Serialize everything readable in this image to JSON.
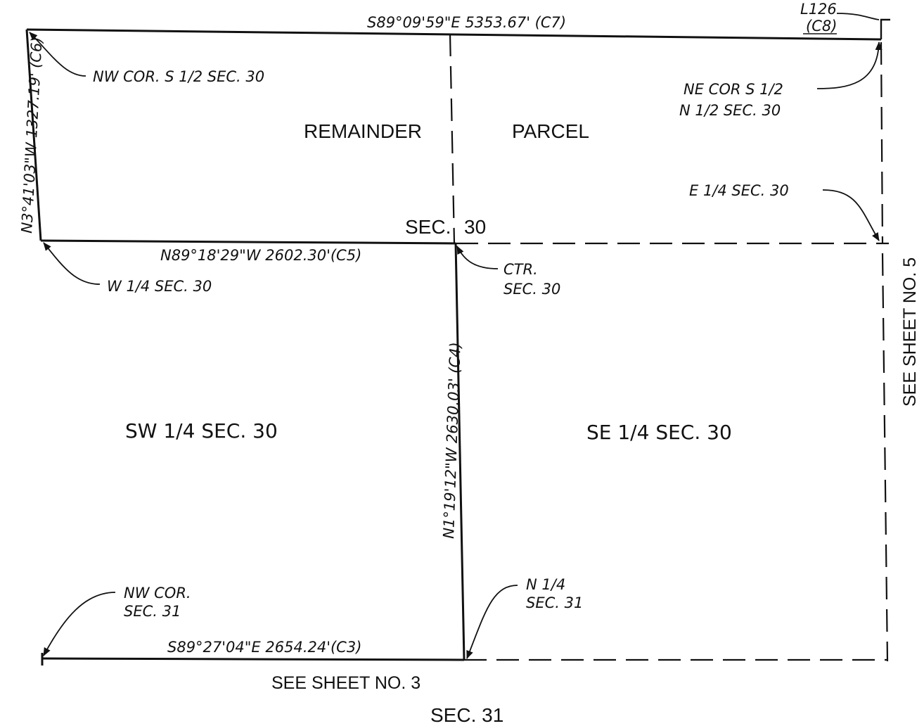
{
  "bearings": {
    "north": "S89°09'59\"E 5353.67' (C7)",
    "west": "N3°41'03\"W 1327.19' (C6)",
    "mid": "N89°18'29\"W 2602.30'(C5)",
    "center": "N1°19'12\"W 2630.03' (C4)",
    "south": "S89°27'04\"E 2654.24'(C3)"
  },
  "corner_line": {
    "line": "L126",
    "course": "(C8)"
  },
  "corners": {
    "nw_s_half": "NW COR. S 1/2 SEC. 30",
    "ne_s_half_l1": "NE COR S 1/2",
    "ne_s_half_l2": "N 1/2 SEC. 30",
    "e_quarter": "E 1/4 SEC. 30",
    "w_quarter": "W 1/4 SEC. 30",
    "ctr_l1": "CTR.",
    "ctr_l2": "SEC. 30",
    "nw_sec31_l1": "NW COR.",
    "nw_sec31_l2": "SEC. 31",
    "n_quarter_l1": "N 1/4",
    "n_quarter_l2": "SEC. 31"
  },
  "areas": {
    "remainder": "REMAINDER",
    "parcel": "PARCEL",
    "sw_quarter": "SW 1/4 SEC. 30",
    "se_quarter": "SE 1/4 SEC. 30"
  },
  "sections": {
    "sec30_left": "SEC.",
    "sec30_right": "30",
    "sec31": "SEC. 31"
  },
  "sheet_refs": {
    "east": "SEE SHEET NO. 5",
    "south": "SEE SHEET NO. 3"
  }
}
